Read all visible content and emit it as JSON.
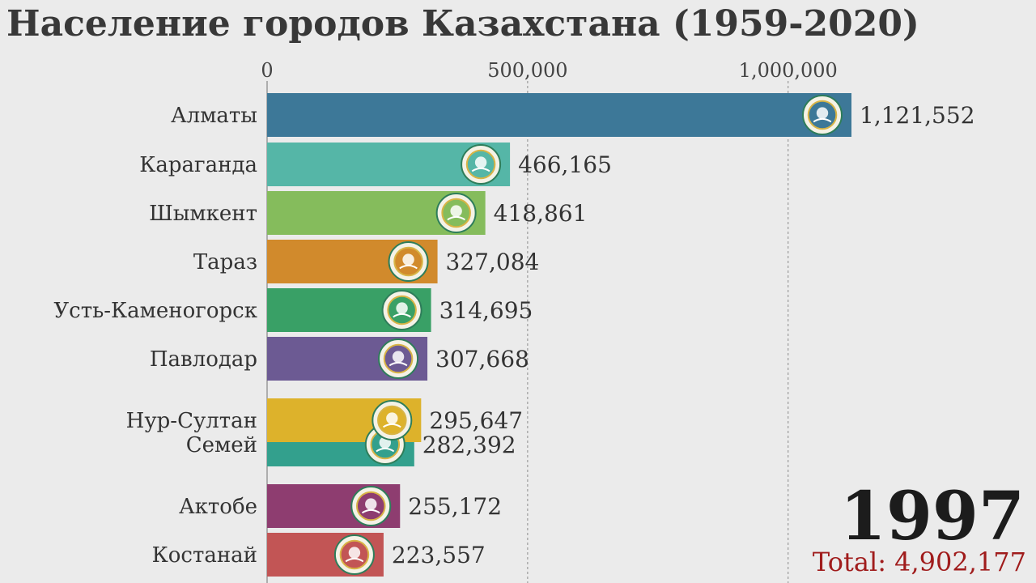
{
  "chart_data": {
    "type": "bar",
    "orientation": "horizontal",
    "title": "Население городов Казахстана (1959-2020)",
    "categories": [
      "Алматы",
      "Караганда",
      "Шымкент",
      "Тараз",
      "Усть-Каменогорск",
      "Павлодар",
      "Нур-Султан",
      "Семей",
      "Актобе",
      "Костанай"
    ],
    "values": [
      1121552,
      466165,
      418861,
      327084,
      314695,
      307668,
      295647,
      282392,
      255172,
      223557
    ],
    "value_labels": [
      "1,121,552",
      "466,165",
      "418,861",
      "327,084",
      "314,695",
      "307,668",
      "295,647",
      "282,392",
      "255,172",
      "223,557"
    ],
    "colors": [
      "#3d7898",
      "#55b6a7",
      "#85bc5c",
      "#d18a2c",
      "#39a066",
      "#6c5a93",
      "#ddb22b",
      "#33a08d",
      "#8e3d70",
      "#c25555"
    ],
    "icons": [
      "almaty-emblem-icon",
      "karaganda-emblem-icon",
      "shymkent-emblem-icon",
      "taraz-emblem-icon",
      "ust-kamenogorsk-emblem-icon",
      "pavlodar-emblem-icon",
      "nur-sultan-emblem-icon",
      "semey-emblem-icon",
      "aktobe-emblem-icon",
      "kostanay-emblem-icon"
    ],
    "xaxis": {
      "position": "top",
      "ticks": [
        0,
        500000,
        1000000
      ],
      "tick_labels": [
        "0",
        "500,000",
        "1,000,000"
      ],
      "range": [
        0,
        1121552
      ]
    },
    "grid": true,
    "year": "1997",
    "total_label": "Total: 4,902,177"
  }
}
